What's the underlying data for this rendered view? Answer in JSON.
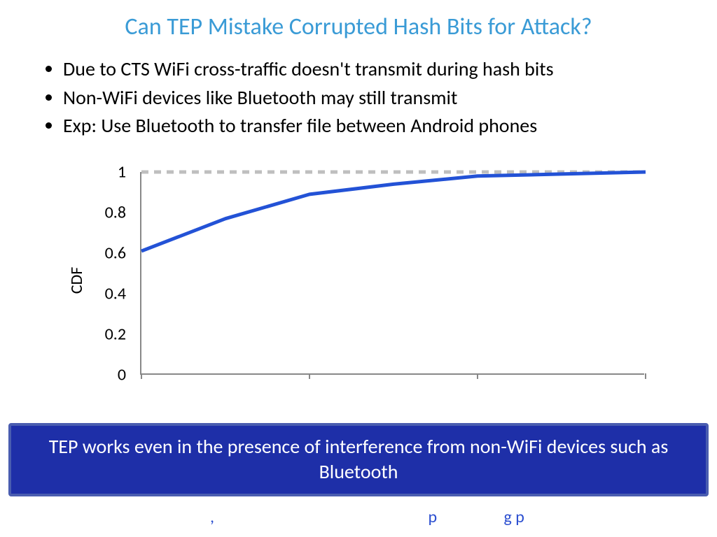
{
  "title": {
    "text": "Can TEP Mistake Corrupted Hash Bits for Attack?",
    "color": "#3a9bd6",
    "fontsize": 34
  },
  "bullets": [
    "Due to CTS WiFi cross-traffic doesn't transmit during  hash bits",
    "Non-WiFi devices like Bluetooth may still transmit",
    "Exp: Use Bluetooth to transfer file between Android phones"
  ],
  "chart": {
    "type": "line",
    "ylabel": "CDF",
    "ylim": [
      0,
      1
    ],
    "yticks": [
      0,
      0.2,
      0.4,
      0.6,
      0.8,
      1
    ],
    "ytick_labels": [
      "0",
      "0.2",
      "0.4",
      "0.6",
      "0.8",
      "1"
    ],
    "xlim": [
      0,
      3
    ],
    "x_gridlines": [
      0,
      1,
      2,
      3
    ],
    "series": {
      "x": [
        0,
        0.5,
        1,
        1.5,
        2,
        2.5,
        3
      ],
      "y": [
        0.61,
        0.77,
        0.89,
        0.94,
        0.98,
        0.99,
        1.0
      ],
      "color": "#2352d6",
      "width": 5
    },
    "reference_line": {
      "y": 1.0,
      "color": "#bfbfbf",
      "dash": "10,8",
      "width": 5
    },
    "axis_color": "#888888",
    "tick_fontsize": 24,
    "label_fontsize": 24
  },
  "banner": {
    "text": "TEP works even in the presence of interference from non-WiFi devices such as Bluetooth",
    "bg_color": "#1e2fa8",
    "border_color": "#4a5db0",
    "text_color": "#ffffff",
    "fontsize": 28
  },
  "partial": {
    "text1": ",",
    "text2": "p",
    "text3": "g p",
    "color": "#2c4fd0"
  }
}
